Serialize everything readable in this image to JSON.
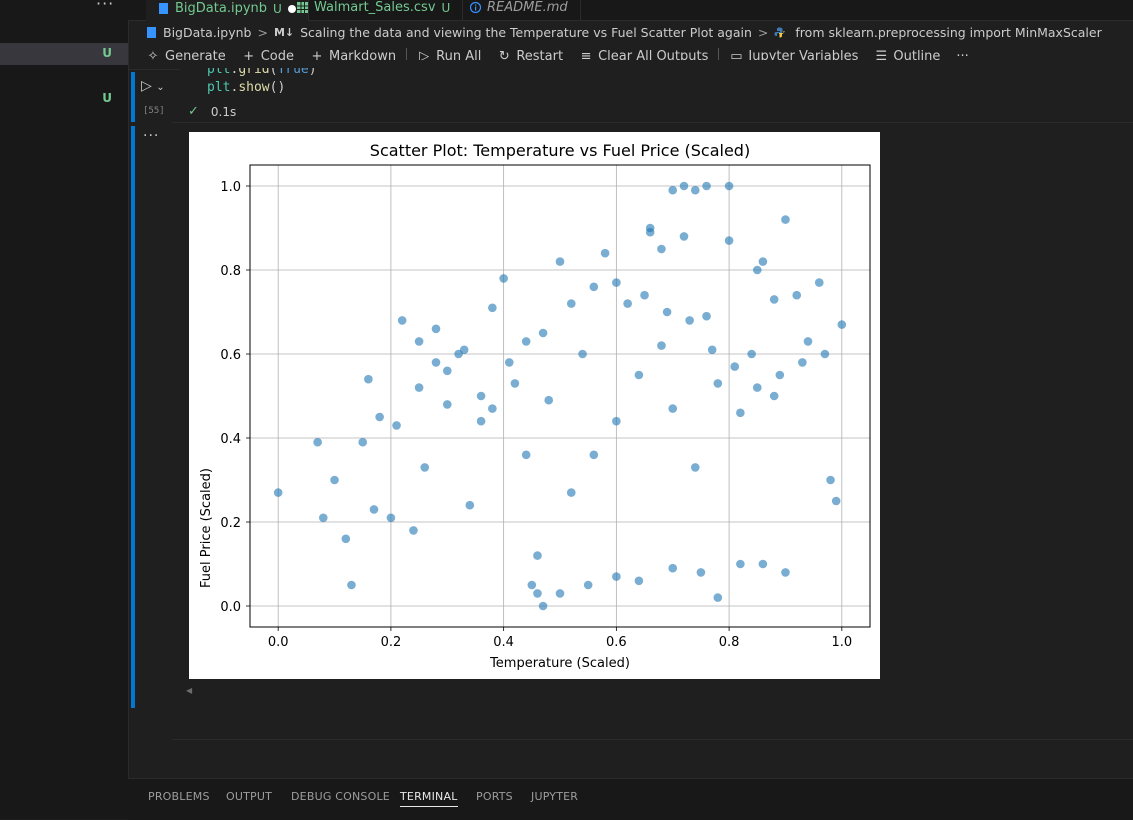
{
  "tabs": [
    {
      "name": "BigData.ipynb",
      "status": "U",
      "modified": true,
      "active": true
    },
    {
      "name": "Walmart_Sales.csv",
      "status": "U",
      "active": false
    },
    {
      "name": "README.md",
      "status": "",
      "active": false
    }
  ],
  "sidebar": {
    "overflow": "···",
    "badges": [
      "U",
      "U"
    ]
  },
  "breadcrumb": {
    "file": "BigData.ipynb",
    "md_badge": "M↓",
    "section": "Scaling the data and viewing the Temperature vs Fuel Scatter Plot again",
    "cell": "from sklearn.preprocessing import MinMaxScaler"
  },
  "toolbar": {
    "generate": "Generate",
    "code": "Code",
    "markdown": "Markdown",
    "run_all": "Run All",
    "restart": "Restart",
    "clear_outputs": "Clear All Outputs",
    "variables": "Jupyter Variables",
    "outline": "Outline",
    "more": "···"
  },
  "cell": {
    "line1": {
      "obj": "plt",
      "dot": ".",
      "fn": "grid",
      "open": "(",
      "arg": "True",
      "close": ")"
    },
    "line2": {
      "obj": "plt",
      "dot": ".",
      "fn": "show",
      "parens": "()"
    },
    "exec_count": "[55]",
    "exec_time": "0.1s",
    "output_dots": "···"
  },
  "panel_tabs": [
    "PROBLEMS",
    "OUTPUT",
    "DEBUG CONSOLE",
    "TERMINAL",
    "PORTS",
    "JUPYTER"
  ],
  "active_panel_tab": "TERMINAL",
  "colors": {
    "accent": "#0078d4",
    "untracked": "#73c991",
    "marker": "#1f77b4"
  },
  "chart_data": {
    "type": "scatter",
    "title": "Scatter Plot: Temperature vs Fuel Price (Scaled)",
    "xlabel": "Temperature (Scaled)",
    "ylabel": "Fuel Price (Scaled)",
    "xlim": [
      -0.05,
      1.05
    ],
    "ylim": [
      -0.05,
      1.05
    ],
    "xticks": [
      "0.0",
      "0.2",
      "0.4",
      "0.6",
      "0.8",
      "1.0"
    ],
    "yticks": [
      "0.0",
      "0.2",
      "0.4",
      "0.6",
      "0.8",
      "1.0"
    ],
    "grid": true,
    "marker_alpha": 0.6,
    "series": [
      {
        "x": [
          0.0,
          0.07,
          0.08,
          0.1,
          0.12,
          0.13,
          0.15,
          0.16,
          0.17,
          0.18,
          0.2,
          0.21,
          0.22,
          0.24,
          0.25,
          0.26,
          0.28,
          0.3,
          0.32,
          0.34,
          0.36,
          0.38,
          0.4,
          0.42,
          0.44,
          0.46,
          0.48,
          0.5,
          0.52,
          0.54,
          0.56,
          0.58,
          0.6,
          0.62,
          0.64,
          0.66,
          0.68,
          0.7,
          0.72,
          0.74,
          0.76,
          0.78,
          0.8,
          0.82,
          0.84,
          0.86,
          0.88,
          0.9,
          0.92,
          0.94,
          0.96,
          0.98,
          1.0,
          0.7,
          0.72,
          0.74,
          0.76,
          0.8,
          0.66,
          0.68,
          0.85,
          0.88,
          0.45,
          0.46,
          0.47,
          0.5,
          0.55,
          0.6,
          0.64,
          0.7,
          0.75,
          0.78,
          0.82,
          0.86,
          0.9,
          0.25,
          0.28,
          0.3,
          0.33,
          0.36,
          0.38,
          0.41,
          0.44,
          0.47,
          0.52,
          0.56,
          0.6,
          0.65,
          0.69,
          0.73,
          0.77,
          0.81,
          0.85,
          0.89,
          0.93,
          0.97,
          0.99
        ],
        "y": [
          0.27,
          0.39,
          0.21,
          0.3,
          0.16,
          0.05,
          0.39,
          0.54,
          0.23,
          0.45,
          0.21,
          0.43,
          0.68,
          0.18,
          0.52,
          0.33,
          0.58,
          0.48,
          0.6,
          0.24,
          0.44,
          0.71,
          0.78,
          0.53,
          0.36,
          0.12,
          0.49,
          0.82,
          0.27,
          0.6,
          0.36,
          0.84,
          0.44,
          0.72,
          0.55,
          0.9,
          0.62,
          0.47,
          0.88,
          0.33,
          0.69,
          0.53,
          0.87,
          0.46,
          0.6,
          0.82,
          0.5,
          0.92,
          0.74,
          0.63,
          0.77,
          0.3,
          0.67,
          0.99,
          1.0,
          0.99,
          1.0,
          1.0,
          0.89,
          0.85,
          0.8,
          0.73,
          0.05,
          0.03,
          0.0,
          0.03,
          0.05,
          0.07,
          0.06,
          0.09,
          0.08,
          0.02,
          0.1,
          0.1,
          0.08,
          0.63,
          0.66,
          0.56,
          0.61,
          0.5,
          0.47,
          0.58,
          0.63,
          0.65,
          0.72,
          0.76,
          0.77,
          0.74,
          0.7,
          0.68,
          0.61,
          0.57,
          0.52,
          0.55,
          0.58,
          0.6,
          0.25
        ]
      }
    ]
  }
}
